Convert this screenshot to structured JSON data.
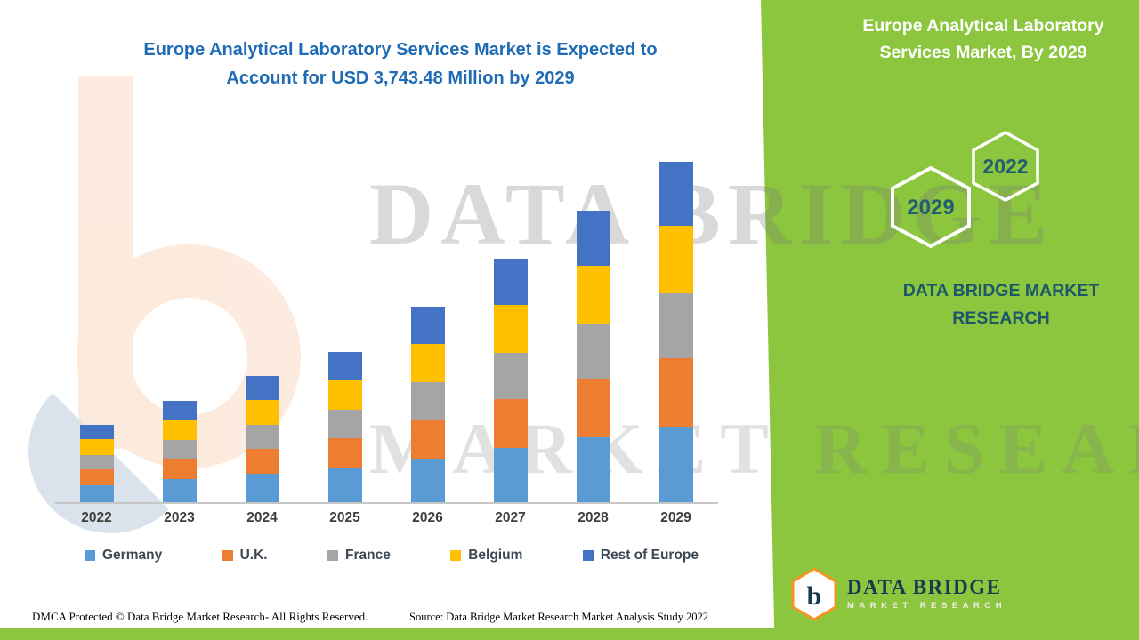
{
  "titles": {
    "main_line1": "Europe Analytical Laboratory Services Market is Expected to",
    "main_line2": "Account for USD 3,743.48 Million by 2029",
    "side_line1": "Europe Analytical Laboratory",
    "side_line2": "Services Market, By 2029",
    "caption_line1": "DATA BRIDGE MARKET",
    "caption_line2": "RESEARCH"
  },
  "hexagons": {
    "front": "2029",
    "back": "2022"
  },
  "watermark": {
    "line1": "DATA BRIDGE",
    "line2": "MARKET RESEARCH"
  },
  "footer": {
    "dmca": "DMCA Protected © Data Bridge Market Research- All Rights Reserved.",
    "source": "Source: Data Bridge Market Research Market Analysis Study 2022"
  },
  "logo": {
    "brand": "DATA BRIDGE",
    "tagline": "MARKET RESEARCH",
    "monogram": "b"
  },
  "colors": {
    "panel_green": "#8CC63F",
    "title_blue": "#1F6BB5",
    "teal_text": "#1C5868",
    "axis_label": "#3E3E3E",
    "baseline": "#C6C6C6"
  },
  "chart_data": {
    "type": "bar",
    "stacked": true,
    "title": "Europe Analytical Laboratory Services Market is Expected to Account for USD 3,743.48 Million by 2029",
    "unit": "USD Million",
    "xlabel": "",
    "ylabel": "",
    "grid": false,
    "value_axis_visible": false,
    "legend_position": "bottom",
    "categories": [
      "2022",
      "2023",
      "2024",
      "2025",
      "2026",
      "2027",
      "2028",
      "2029"
    ],
    "series": [
      {
        "name": "Germany",
        "color": "#5B9BD5",
        "values": [
          190,
          250,
          310,
          370,
          480,
          600,
          715,
          835
        ]
      },
      {
        "name": "U.K.",
        "color": "#ED7D31",
        "values": [
          170,
          225,
          280,
          330,
          430,
          535,
          640,
          750
        ]
      },
      {
        "name": "France",
        "color": "#A5A5A5",
        "values": [
          160,
          210,
          265,
          315,
          410,
          510,
          610,
          715
        ]
      },
      {
        "name": "Belgium",
        "color": "#FFC000",
        "values": [
          170,
          220,
          275,
          330,
          425,
          530,
          635,
          740
        ]
      },
      {
        "name": "Rest of Europe",
        "color": "#4472C4",
        "values": [
          160,
          210,
          260,
          310,
          405,
          505,
          605,
          703.48
        ]
      }
    ],
    "totals": [
      850,
      1115,
      1390,
      1655,
      2150,
      2680,
      3205,
      3743.48
    ]
  }
}
